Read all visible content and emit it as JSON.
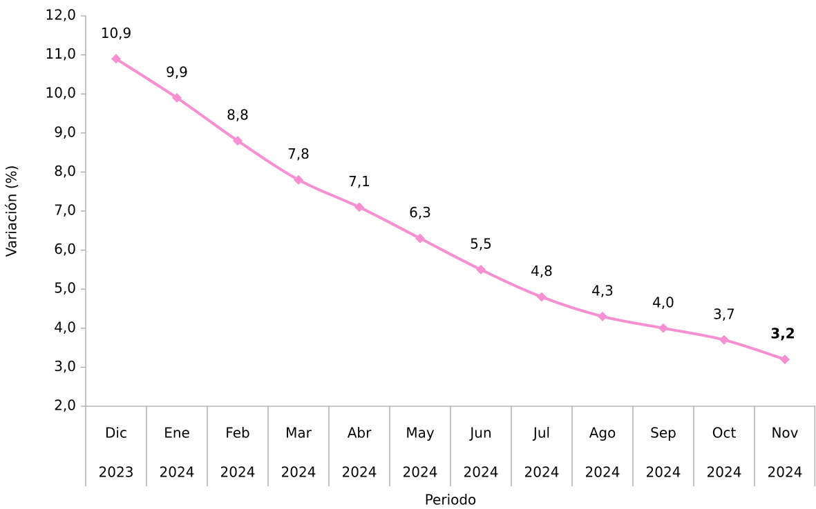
{
  "chart_data": {
    "type": "line",
    "y_axis_label": "Variación (%)",
    "x_axis_label": "Periodo",
    "categories": [
      "Dic",
      "Ene",
      "Feb",
      "Mar",
      "Abr",
      "May",
      "Jun",
      "Jul",
      "Ago",
      "Sep",
      "Oct",
      "Nov"
    ],
    "years": [
      "2023",
      "2024",
      "2024",
      "2024",
      "2024",
      "2024",
      "2024",
      "2024",
      "2024",
      "2024",
      "2024",
      "2024"
    ],
    "values": [
      10.9,
      9.9,
      8.8,
      7.8,
      7.1,
      6.3,
      5.5,
      4.8,
      4.3,
      4.0,
      3.7,
      3.2
    ],
    "value_labels": [
      "10,9",
      "9,9",
      "8,8",
      "7,8",
      "7,1",
      "6,3",
      "5,5",
      "4,8",
      "4,3",
      "4,0",
      "3,7",
      "3,2"
    ],
    "color": "#f78fd0",
    "ylim": [
      2,
      12
    ],
    "yticks": [
      {
        "value": 2,
        "label": "2,0"
      },
      {
        "value": 3,
        "label": "3,0"
      },
      {
        "value": 4,
        "label": "4,0"
      },
      {
        "value": 5,
        "label": "5,0"
      },
      {
        "value": 6,
        "label": "6,0"
      },
      {
        "value": 7,
        "label": "7,0"
      },
      {
        "value": 8,
        "label": "8,0"
      },
      {
        "value": 9,
        "label": "9,0"
      },
      {
        "value": 10,
        "label": "10,0"
      },
      {
        "value": 11,
        "label": "11,0"
      },
      {
        "value": 12,
        "label": "12,0"
      }
    ],
    "grid": false
  }
}
